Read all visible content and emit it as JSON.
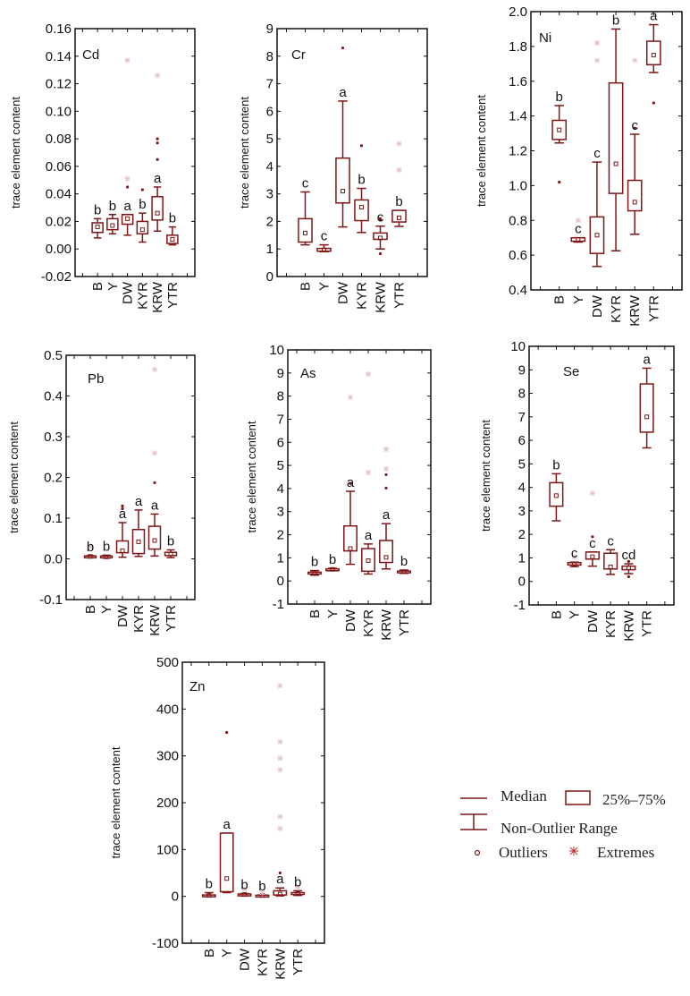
{
  "colors": {
    "box": "#7f1616",
    "extreme": "#e6c4c4",
    "axis": "#111111"
  },
  "legend": {
    "median": "Median",
    "box": "25%–75%",
    "range": "Non-Outlier Range",
    "outliers": "Outliers",
    "extremes": "Extremes"
  },
  "chart_data": [
    {
      "type": "box",
      "title": "Cd",
      "ylabel": "trace element content",
      "ylim": [
        -0.02,
        0.16
      ],
      "yticks": [
        "-0.02",
        "0.00",
        "0.02",
        "0.04",
        "0.06",
        "0.08",
        "0.10",
        "0.12",
        "0.14",
        "0.16"
      ],
      "categories": [
        "B",
        "Y",
        "DW",
        "KYR",
        "KRW",
        "YTR"
      ],
      "boxes": [
        {
          "min": 0.008,
          "q1": 0.012,
          "median": 0.016,
          "q3": 0.019,
          "max": 0.022,
          "outliers": [],
          "extremes": [],
          "letter": "b"
        },
        {
          "min": 0.011,
          "q1": 0.014,
          "median": 0.017,
          "q3": 0.022,
          "max": 0.025,
          "outliers": [],
          "extremes": [],
          "letter": "b"
        },
        {
          "min": 0.01,
          "q1": 0.018,
          "median": 0.022,
          "q3": 0.025,
          "max": 0.025,
          "outliers": [
            0.045
          ],
          "extremes": [
            0.051,
            0.137
          ],
          "letter": "a"
        },
        {
          "min": 0.005,
          "q1": 0.011,
          "median": 0.014,
          "q3": 0.02,
          "max": 0.026,
          "outliers": [
            0.043
          ],
          "extremes": [],
          "letter": "b"
        },
        {
          "min": 0.013,
          "q1": 0.021,
          "median": 0.026,
          "q3": 0.038,
          "max": 0.045,
          "outliers": [
            0.065,
            0.077,
            0.08
          ],
          "extremes": [
            0.126
          ],
          "letter": "a"
        },
        {
          "min": 0.003,
          "q1": 0.004,
          "median": 0.007,
          "q3": 0.01,
          "max": 0.016,
          "outliers": [],
          "extremes": [],
          "letter": "b"
        }
      ]
    },
    {
      "type": "box",
      "title": "Cr",
      "ylabel": "trace element content",
      "ylim": [
        0,
        9
      ],
      "yticks": [
        "0",
        "1",
        "2",
        "3",
        "4",
        "5",
        "6",
        "7",
        "8",
        "9"
      ],
      "categories": [
        "B",
        "Y",
        "DW",
        "KYR",
        "KRW",
        "YTR"
      ],
      "boxes": [
        {
          "min": 1.15,
          "q1": 1.25,
          "median": 1.58,
          "q3": 2.1,
          "max": 3.07,
          "outliers": [],
          "extremes": [],
          "letter": "c"
        },
        {
          "min": 0.9,
          "q1": 0.92,
          "median": 0.97,
          "q3": 1.02,
          "max": 1.15,
          "outliers": [],
          "extremes": [],
          "letter": "c"
        },
        {
          "min": 1.8,
          "q1": 2.67,
          "median": 3.1,
          "q3": 4.3,
          "max": 6.37,
          "outliers": [
            8.3
          ],
          "extremes": [],
          "letter": "a"
        },
        {
          "min": 1.6,
          "q1": 2.03,
          "median": 2.52,
          "q3": 2.78,
          "max": 3.2,
          "outliers": [
            4.75
          ],
          "extremes": [],
          "letter": "b"
        },
        {
          "min": 1.0,
          "q1": 1.35,
          "median": 1.4,
          "q3": 1.58,
          "max": 1.83,
          "outliers": [
            0.83,
            2.05,
            2.1
          ],
          "extremes": [],
          "letter": "c"
        },
        {
          "min": 1.82,
          "q1": 1.98,
          "median": 2.13,
          "q3": 2.4,
          "max": 2.4,
          "outliers": [],
          "extremes": [
            3.87,
            4.82
          ],
          "letter": "b"
        }
      ]
    },
    {
      "type": "box",
      "title": "Ni",
      "ylabel": "trace element content",
      "ylim": [
        0.4,
        2.0
      ],
      "yticks": [
        "0.4",
        "0.6",
        "0.8",
        "1.0",
        "1.2",
        "1.4",
        "1.6",
        "1.8",
        "2.0"
      ],
      "categories": [
        "B",
        "Y",
        "DW",
        "KYR",
        "KRW",
        "YTR"
      ],
      "boxes": [
        {
          "min": 1.245,
          "q1": 1.265,
          "median": 1.32,
          "q3": 1.375,
          "max": 1.46,
          "outliers": [
            1.02
          ],
          "extremes": [],
          "letter": "b"
        },
        {
          "min": 0.675,
          "q1": 0.68,
          "median": 0.69,
          "q3": 0.7,
          "max": 0.7,
          "outliers": [],
          "extremes": [
            0.8
          ],
          "letter": "c"
        },
        {
          "min": 0.535,
          "q1": 0.61,
          "median": 0.715,
          "q3": 0.82,
          "max": 1.135,
          "outliers": [],
          "extremes": [
            1.72,
            1.82
          ],
          "letter": "c"
        },
        {
          "min": 0.625,
          "q1": 0.955,
          "median": 1.125,
          "q3": 1.59,
          "max": 1.9,
          "outliers": [],
          "extremes": [],
          "letter": "b"
        },
        {
          "min": 0.72,
          "q1": 0.855,
          "median": 0.905,
          "q3": 1.03,
          "max": 1.295,
          "outliers": [
            1.33
          ],
          "extremes": [
            1.72
          ],
          "letter": "c"
        },
        {
          "min": 1.65,
          "q1": 1.695,
          "median": 1.75,
          "q3": 1.83,
          "max": 1.925,
          "outliers": [
            1.475
          ],
          "extremes": [],
          "letter": "a"
        }
      ]
    },
    {
      "type": "box",
      "title": "Pb",
      "ylabel": "trace element content",
      "ylim": [
        -0.1,
        0.5
      ],
      "yticks": [
        "-0.1",
        "0.0",
        "0.1",
        "0.2",
        "0.3",
        "0.4",
        "0.5"
      ],
      "categories": [
        "B",
        "Y",
        "DW",
        "KYR",
        "KRW",
        "YTR"
      ],
      "boxes": [
        {
          "min": 0.004,
          "q1": 0.005,
          "median": 0.006,
          "q3": 0.007,
          "max": 0.008,
          "outliers": [],
          "extremes": [
            0.03
          ],
          "letter": "b"
        },
        {
          "min": 0.002,
          "q1": 0.003,
          "median": 0.005,
          "q3": 0.007,
          "max": 0.009,
          "outliers": [],
          "extremes": [],
          "letter": "b"
        },
        {
          "min": 0.004,
          "q1": 0.015,
          "median": 0.02,
          "q3": 0.044,
          "max": 0.089,
          "outliers": [
            0.123,
            0.13
          ],
          "extremes": [],
          "letter": "a"
        },
        {
          "min": 0.006,
          "q1": 0.013,
          "median": 0.042,
          "q3": 0.072,
          "max": 0.12,
          "outliers": [],
          "extremes": [],
          "letter": "a"
        },
        {
          "min": 0.007,
          "q1": 0.024,
          "median": 0.045,
          "q3": 0.08,
          "max": 0.11,
          "outliers": [
            0.187
          ],
          "extremes": [
            0.26,
            0.465
          ],
          "letter": "a"
        },
        {
          "min": 0.003,
          "q1": 0.008,
          "median": 0.012,
          "q3": 0.016,
          "max": 0.022,
          "outliers": [],
          "extremes": [],
          "letter": "b"
        }
      ]
    },
    {
      "type": "box",
      "title": "As",
      "ylabel": "trace element content",
      "ylim": [
        -1,
        10
      ],
      "yticks": [
        "-1",
        "0",
        "1",
        "2",
        "3",
        "4",
        "5",
        "6",
        "7",
        "8",
        "9",
        "10"
      ],
      "categories": [
        "B",
        "Y",
        "DW",
        "KYR",
        "KRW",
        "YTR"
      ],
      "boxes": [
        {
          "min": 0.25,
          "q1": 0.3,
          "median": 0.35,
          "q3": 0.38,
          "max": 0.45,
          "outliers": [],
          "extremes": [],
          "letter": "b"
        },
        {
          "min": 0.47,
          "q1": 0.48,
          "median": 0.5,
          "q3": 0.52,
          "max": 0.55,
          "outliers": [],
          "extremes": [],
          "letter": "b"
        },
        {
          "min": 0.72,
          "q1": 1.3,
          "median": 1.4,
          "q3": 2.38,
          "max": 3.88,
          "outliers": [
            4.22
          ],
          "extremes": [
            7.95
          ],
          "letter": "a"
        },
        {
          "min": 0.3,
          "q1": 0.42,
          "median": 0.88,
          "q3": 1.4,
          "max": 1.6,
          "outliers": [],
          "extremes": [
            4.7,
            8.95
          ],
          "letter": "a"
        },
        {
          "min": 0.52,
          "q1": 0.8,
          "median": 1.02,
          "q3": 1.75,
          "max": 2.48,
          "outliers": [
            4.02,
            4.6
          ],
          "extremes": [
            4.85,
            5.7
          ],
          "letter": "a"
        },
        {
          "min": 0.33,
          "q1": 0.36,
          "median": 0.4,
          "q3": 0.43,
          "max": 0.47,
          "outliers": [],
          "extremes": [],
          "letter": "b"
        }
      ]
    },
    {
      "type": "box",
      "title": "Se",
      "ylabel": "trace element content",
      "ylim": [
        -1,
        10
      ],
      "yticks": [
        "-1",
        "0",
        "1",
        "2",
        "3",
        "4",
        "5",
        "6",
        "7",
        "8",
        "9",
        "10"
      ],
      "categories": [
        "B",
        "Y",
        "DW",
        "KYR",
        "KRW",
        "YTR"
      ],
      "boxes": [
        {
          "min": 2.58,
          "q1": 3.2,
          "median": 3.65,
          "q3": 4.2,
          "max": 4.58,
          "outliers": [],
          "extremes": [],
          "letter": "b"
        },
        {
          "min": 0.63,
          "q1": 0.7,
          "median": 0.75,
          "q3": 0.8,
          "max": 0.82,
          "outliers": [],
          "extremes": [
            1.05
          ],
          "letter": "c"
        },
        {
          "min": 0.65,
          "q1": 0.95,
          "median": 1.05,
          "q3": 1.25,
          "max": 1.25,
          "outliers": [
            1.9
          ],
          "extremes": [
            3.75
          ],
          "letter": "c"
        },
        {
          "min": 0.3,
          "q1": 0.53,
          "median": 0.62,
          "q3": 1.2,
          "max": 1.35,
          "outliers": [],
          "extremes": [],
          "letter": "c"
        },
        {
          "min": 0.33,
          "q1": 0.5,
          "median": 0.58,
          "q3": 0.65,
          "max": 0.75,
          "outliers": [
            0.2,
            0.85
          ],
          "extremes": [],
          "letter": "cd"
        },
        {
          "min": 5.68,
          "q1": 6.35,
          "median": 7.0,
          "q3": 8.4,
          "max": 9.07,
          "outliers": [],
          "extremes": [],
          "letter": "a"
        }
      ]
    },
    {
      "type": "box",
      "title": "Zn",
      "ylabel": "trace element content",
      "ylim": [
        -100,
        500
      ],
      "yticks": [
        "-100",
        "0",
        "100",
        "200",
        "300",
        "400",
        "500"
      ],
      "categories": [
        "B",
        "Y",
        "DW",
        "KYR",
        "KRW",
        "YTR"
      ],
      "boxes": [
        {
          "min": 0.5,
          "q1": 1,
          "median": 2,
          "q3": 3,
          "max": 8,
          "outliers": [],
          "extremes": [],
          "letter": "b"
        },
        {
          "min": 8,
          "q1": 10,
          "median": 38,
          "q3": 135,
          "max": 135,
          "outliers": [
            350
          ],
          "extremes": [],
          "letter": "a"
        },
        {
          "min": 1,
          "q1": 2,
          "median": 4,
          "q3": 5,
          "max": 6,
          "outliers": [],
          "extremes": [
            15
          ],
          "letter": "b"
        },
        {
          "min": 0.5,
          "q1": 1,
          "median": 2,
          "q3": 2.5,
          "max": 3,
          "outliers": [],
          "extremes": [
            8
          ],
          "letter": "b"
        },
        {
          "min": 1,
          "q1": 3,
          "median": 5,
          "q3": 12,
          "max": 18,
          "outliers": [
            50
          ],
          "extremes": [
            145,
            170,
            270,
            295,
            330,
            450
          ],
          "letter": "a"
        },
        {
          "min": 2,
          "q1": 4,
          "median": 6,
          "q3": 8,
          "max": 12,
          "outliers": [],
          "extremes": [
            20
          ],
          "letter": "b"
        }
      ]
    }
  ]
}
